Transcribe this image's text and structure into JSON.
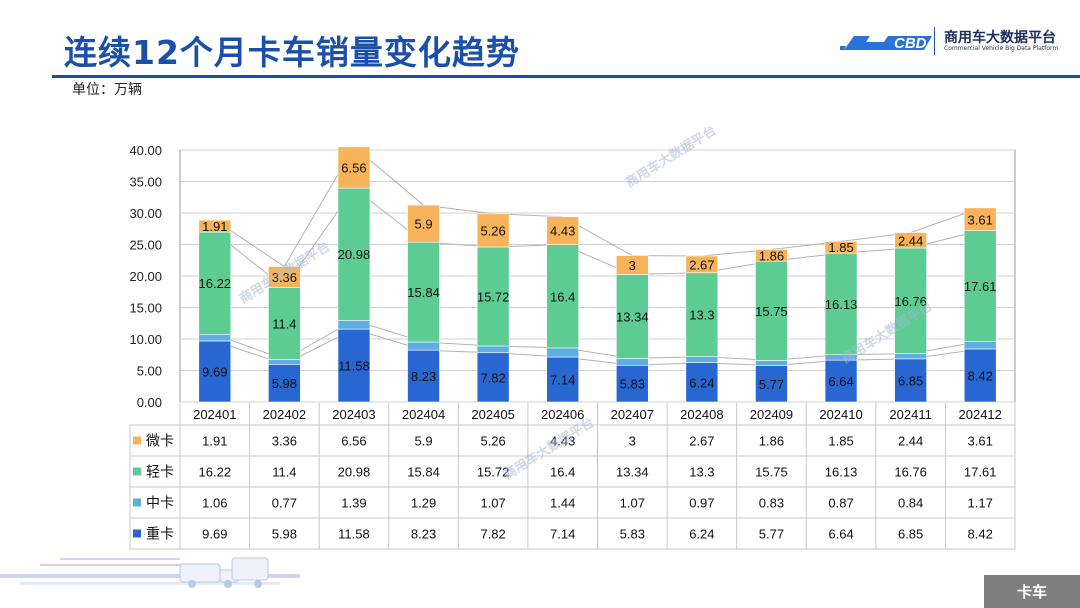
{
  "page": {
    "title": "连续12个月卡车销量变化趋势",
    "unit_label": "单位：万辆",
    "logo_name": "商用车大数据平台",
    "logo_sub": "Commercial Vehicle Big Data Platform",
    "watermark_text": "商用车大数据平台",
    "footer_tab": "卡车"
  },
  "colors": {
    "title_blue": "#1b4fa8",
    "weika": "#f7b35a",
    "qingka": "#5ccc93",
    "zhongka_mid": "#5faee3",
    "zhongka_heavy": "#2867d2",
    "grid": "#d0d0d0"
  },
  "chart_data": {
    "type": "bar",
    "stacked": true,
    "categories": [
      "202401",
      "202402",
      "202403",
      "202404",
      "202405",
      "202406",
      "202407",
      "202408",
      "202409",
      "202410",
      "202411",
      "202412"
    ],
    "series": [
      {
        "name": "重卡",
        "color": "#2867d2",
        "values": [
          9.69,
          5.98,
          11.58,
          8.23,
          7.82,
          7.14,
          5.83,
          6.24,
          5.77,
          6.64,
          6.85,
          8.42
        ]
      },
      {
        "name": "中卡",
        "color": "#5faee3",
        "values": [
          1.06,
          0.77,
          1.39,
          1.29,
          1.07,
          1.44,
          1.07,
          0.97,
          0.83,
          0.87,
          0.84,
          1.17
        ]
      },
      {
        "name": "轻卡",
        "color": "#5ccc93",
        "values": [
          16.22,
          11.4,
          20.98,
          15.84,
          15.72,
          16.4,
          13.34,
          13.3,
          15.75,
          16.13,
          16.76,
          17.61
        ]
      },
      {
        "name": "微卡",
        "color": "#f7b35a",
        "values": [
          1.91,
          3.36,
          6.56,
          5.9,
          5.26,
          4.43,
          3,
          2.67,
          1.86,
          1.85,
          2.44,
          3.61
        ]
      }
    ],
    "table_row_order": [
      "微卡",
      "轻卡",
      "中卡",
      "重卡"
    ],
    "y_ticks": [
      "0.00",
      "5.00",
      "10.00",
      "15.00",
      "20.00",
      "25.00",
      "30.00",
      "35.00",
      "40.00"
    ],
    "ylim": [
      0,
      40
    ],
    "grid": true,
    "data_table": true
  }
}
